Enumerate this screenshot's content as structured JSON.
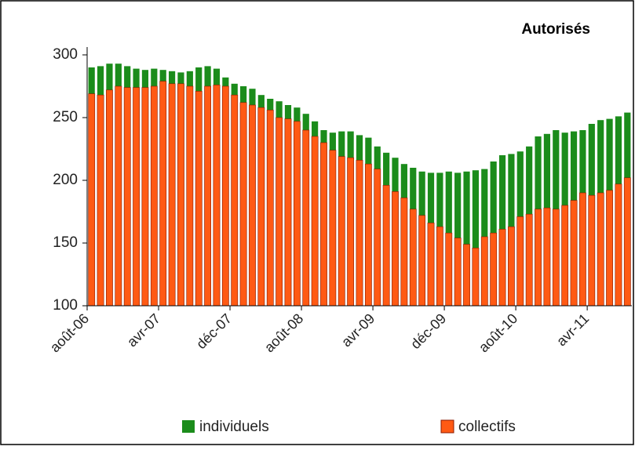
{
  "chart_data": {
    "type": "bar",
    "title": "Autorisés",
    "categories": [
      "août-06",
      null,
      null,
      null,
      null,
      null,
      null,
      null,
      "avr-07",
      null,
      null,
      null,
      null,
      null,
      null,
      null,
      "déc-07",
      null,
      null,
      null,
      null,
      null,
      null,
      null,
      "août-08",
      null,
      null,
      null,
      null,
      null,
      null,
      null,
      "avr-09",
      null,
      null,
      null,
      null,
      null,
      null,
      null,
      "déc-09",
      null,
      null,
      null,
      null,
      null,
      null,
      null,
      "août-10",
      null,
      null,
      null,
      null,
      null,
      null,
      null,
      "avr-11",
      null,
      null,
      null,
      null
    ],
    "series": [
      {
        "name": "individuels",
        "color": "#1b8c1b",
        "values": [
          290,
          291,
          293,
          293,
          291,
          289,
          288,
          289,
          288,
          287,
          286,
          287,
          290,
          291,
          289,
          282,
          277,
          275,
          273,
          268,
          265,
          263,
          260,
          258,
          253,
          247,
          240,
          238,
          239,
          239,
          236,
          234,
          227,
          222,
          218,
          213,
          210,
          207,
          206,
          206,
          207,
          206,
          207,
          208,
          209,
          215,
          220,
          221,
          223,
          227,
          235,
          237,
          240,
          238,
          239,
          240,
          245,
          248,
          249,
          251,
          254
        ]
      },
      {
        "name": "collectifs",
        "color": "#ff5a14",
        "values": [
          269,
          268,
          272,
          275,
          274,
          274,
          274,
          275,
          279,
          277,
          277,
          275,
          271,
          275,
          276,
          275,
          268,
          262,
          260,
          258,
          256,
          250,
          249,
          247,
          240,
          235,
          230,
          224,
          219,
          218,
          216,
          213,
          209,
          196,
          191,
          186,
          177,
          172,
          166,
          163,
          158,
          154,
          149,
          146,
          155,
          158,
          161,
          163,
          171,
          173,
          177,
          178,
          177,
          180,
          184,
          190,
          188,
          190,
          192,
          197,
          202
        ]
      }
    ],
    "ylim": [
      100,
      300
    ],
    "yticks": [
      100,
      150,
      200,
      250,
      300
    ],
    "overlap": true
  }
}
